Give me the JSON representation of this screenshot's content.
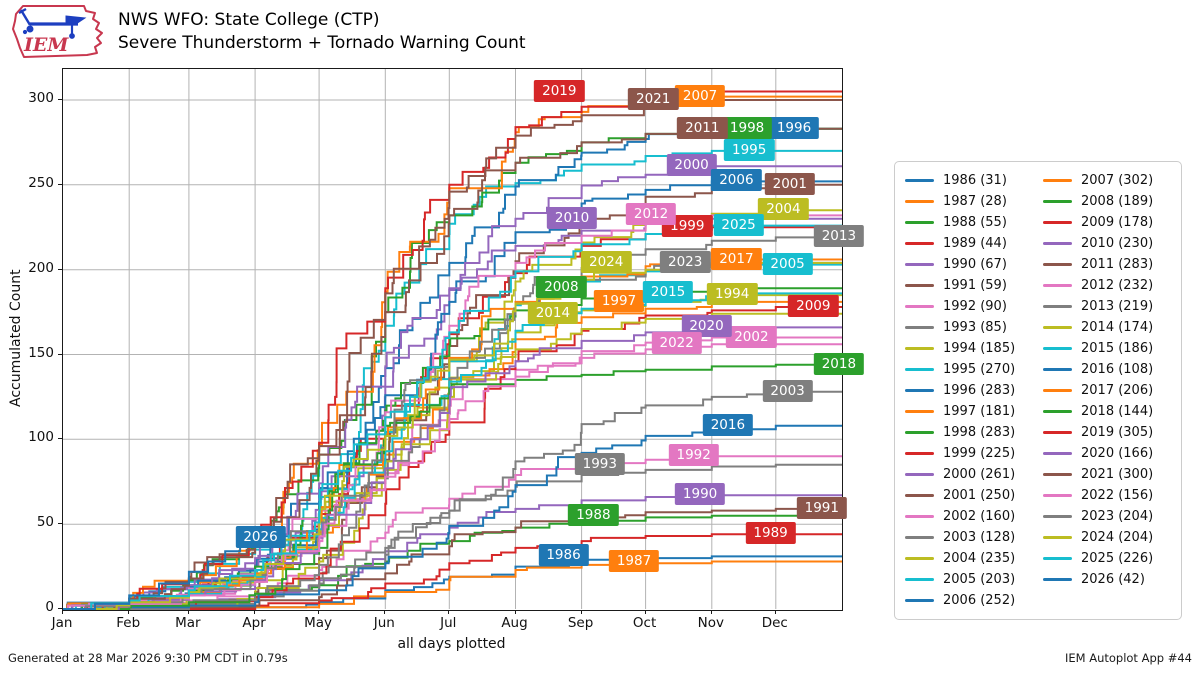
{
  "header": {
    "logo_text": "IEM"
  },
  "footer": {
    "left": "Generated at 28 Mar 2026 9:30 PM CDT in 0.79s",
    "right": "IEM Autoplot App #44"
  },
  "chart_data": {
    "type": "line",
    "title": "NWS WFO: State College (CTP)",
    "subtitle": "Severe Thunderstorm + Tornado Warning Count",
    "xlabel": "all days plotted",
    "ylabel": "Accumulated Count",
    "ylim": [
      0,
      318
    ],
    "yticks": [
      0,
      50,
      100,
      150,
      200,
      250,
      300
    ],
    "grid": true,
    "legend_position": "right",
    "month_labels": [
      "Jan",
      "Feb",
      "Mar",
      "Apr",
      "May",
      "Jun",
      "Jul",
      "Aug",
      "Sep",
      "Oct",
      "Nov",
      "Dec"
    ],
    "month_start_days": [
      0,
      31,
      59,
      90,
      120,
      151,
      181,
      212,
      243,
      273,
      304,
      334
    ],
    "profile_days": [
      0,
      31,
      59,
      90,
      120,
      151,
      181,
      212,
      243,
      273,
      304,
      334,
      365
    ],
    "profiles": {
      "A": [
        0,
        0.01,
        0.03,
        0.07,
        0.18,
        0.42,
        0.68,
        0.85,
        0.93,
        0.97,
        0.99,
        1,
        1
      ],
      "B": [
        0,
        0.02,
        0.05,
        0.1,
        0.25,
        0.5,
        0.72,
        0.88,
        0.95,
        0.98,
        1,
        1,
        1
      ],
      "C": [
        0,
        0.0,
        0.01,
        0.04,
        0.12,
        0.35,
        0.62,
        0.82,
        0.92,
        0.97,
        0.99,
        1,
        1
      ],
      "D": [
        0,
        0.01,
        0.02,
        0.04,
        0.1,
        0.25,
        0.45,
        0.68,
        0.85,
        0.94,
        0.98,
        1,
        1
      ],
      "E": [
        0,
        0.02,
        0.06,
        0.13,
        0.32,
        0.62,
        0.82,
        0.93,
        0.97,
        0.99,
        1,
        1,
        1
      ],
      "F": [
        0,
        0.01,
        0.03,
        0.06,
        0.25,
        0.75,
        0.9,
        0.94,
        0.96,
        0.98,
        0.99,
        1,
        1
      ]
    },
    "series": [
      {
        "year": "1986",
        "total": 31,
        "color": "#1f77b4",
        "profile": "C",
        "label_day": 235
      },
      {
        "year": "1987",
        "total": 28,
        "color": "#ff7f0e",
        "profile": "C",
        "label_day": 268
      },
      {
        "year": "1988",
        "total": 55,
        "color": "#2ca02c",
        "profile": "B",
        "label_day": 249
      },
      {
        "year": "1989",
        "total": 44,
        "color": "#d62728",
        "profile": "C",
        "label_day": 332
      },
      {
        "year": "1990",
        "total": 67,
        "color": "#9467bd",
        "profile": "B",
        "label_day": 299
      },
      {
        "year": "1991",
        "total": 59,
        "color": "#8c564b",
        "profile": "C",
        "label_day": 356
      },
      {
        "year": "1992",
        "total": 90,
        "color": "#e377c2",
        "profile": "B",
        "label_day": 296
      },
      {
        "year": "1993",
        "total": 85,
        "color": "#7f7f7f",
        "profile": "A",
        "label_day": 252
      },
      {
        "year": "1994",
        "total": 185,
        "color": "#bcbd22",
        "profile": "B",
        "label_day": 314
      },
      {
        "year": "1995",
        "total": 270,
        "color": "#17becf",
        "profile": "E",
        "label_day": 322
      },
      {
        "year": "1996",
        "total": 283,
        "color": "#1f77b4",
        "profile": "B",
        "label_day": 343
      },
      {
        "year": "1997",
        "total": 181,
        "color": "#ff7f0e",
        "profile": "B",
        "label_day": 261
      },
      {
        "year": "1998",
        "total": 283,
        "color": "#2ca02c",
        "profile": "E",
        "label_day": 321
      },
      {
        "year": "1999",
        "total": 225,
        "color": "#d62728",
        "profile": "B",
        "label_day": 293
      },
      {
        "year": "2000",
        "total": 261,
        "color": "#9467bd",
        "profile": "B",
        "label_day": 295
      },
      {
        "year": "2001",
        "total": 250,
        "color": "#8c564b",
        "profile": "C",
        "label_day": 341
      },
      {
        "year": "2002",
        "total": 160,
        "color": "#e377c2",
        "profile": "B",
        "label_day": 323
      },
      {
        "year": "2003",
        "total": 128,
        "color": "#7f7f7f",
        "profile": "D",
        "label_day": 340
      },
      {
        "year": "2004",
        "total": 235,
        "color": "#bcbd22",
        "profile": "C",
        "label_day": 338
      },
      {
        "year": "2005",
        "total": 203,
        "color": "#17becf",
        "profile": "B",
        "label_day": 340
      },
      {
        "year": "2006",
        "total": 252,
        "color": "#1f77b4",
        "profile": "B",
        "label_day": 316
      },
      {
        "year": "2007",
        "total": 302,
        "color": "#ff7f0e",
        "profile": "E",
        "label_day": 299
      },
      {
        "year": "2008",
        "total": 189,
        "color": "#2ca02c",
        "profile": "E",
        "label_day": 234
      },
      {
        "year": "2009",
        "total": 178,
        "color": "#d62728",
        "profile": "C",
        "label_day": 352
      },
      {
        "year": "2010",
        "total": 230,
        "color": "#9467bd",
        "profile": "E",
        "label_day": 239
      },
      {
        "year": "2011",
        "total": 283,
        "color": "#8c564b",
        "profile": "E",
        "label_day": 300
      },
      {
        "year": "2012",
        "total": 232,
        "color": "#e377c2",
        "profile": "B",
        "label_day": 276
      },
      {
        "year": "2013",
        "total": 219,
        "color": "#7f7f7f",
        "profile": "C",
        "label_day": 364
      },
      {
        "year": "2014",
        "total": 174,
        "color": "#bcbd22",
        "profile": "B",
        "label_day": 230
      },
      {
        "year": "2015",
        "total": 186,
        "color": "#17becf",
        "profile": "B",
        "label_day": 284
      },
      {
        "year": "2016",
        "total": 108,
        "color": "#1f77b4",
        "profile": "D",
        "label_day": 312
      },
      {
        "year": "2017",
        "total": 206,
        "color": "#ff7f0e",
        "profile": "B",
        "label_day": 316
      },
      {
        "year": "2018",
        "total": 144,
        "color": "#2ca02c",
        "profile": "F",
        "label_day": 364
      },
      {
        "year": "2019",
        "total": 305,
        "color": "#d62728",
        "profile": "E",
        "label_day": 233
      },
      {
        "year": "2020",
        "total": 166,
        "color": "#9467bd",
        "profile": "B",
        "label_day": 302
      },
      {
        "year": "2021",
        "total": 300,
        "color": "#8c564b",
        "profile": "E",
        "label_day": 277
      },
      {
        "year": "2022",
        "total": 156,
        "color": "#e377c2",
        "profile": "B",
        "label_day": 288
      },
      {
        "year": "2023",
        "total": 204,
        "color": "#7f7f7f",
        "profile": "B",
        "label_day": 292
      },
      {
        "year": "2024",
        "total": 204,
        "color": "#bcbd22",
        "profile": "B",
        "label_day": 255
      },
      {
        "year": "2025",
        "total": 226,
        "color": "#17becf",
        "profile": "B",
        "label_day": 317
      },
      {
        "year": "2026",
        "total": 42,
        "color": "#1f77b4",
        "label_day": 93,
        "end_day": 100,
        "points": [
          [
            0,
            0
          ],
          [
            15,
            3
          ],
          [
            31,
            8
          ],
          [
            45,
            15
          ],
          [
            59,
            22
          ],
          [
            68,
            28
          ],
          [
            76,
            34
          ],
          [
            83,
            39
          ],
          [
            87,
            42
          ]
        ]
      }
    ],
    "colors": {
      "grid": "#b3b3b3",
      "spine": "#1a1a1a",
      "legend_border": "#cccccc",
      "logo_red": "#c8374f",
      "logo_blue": "#1d3fc0"
    }
  }
}
